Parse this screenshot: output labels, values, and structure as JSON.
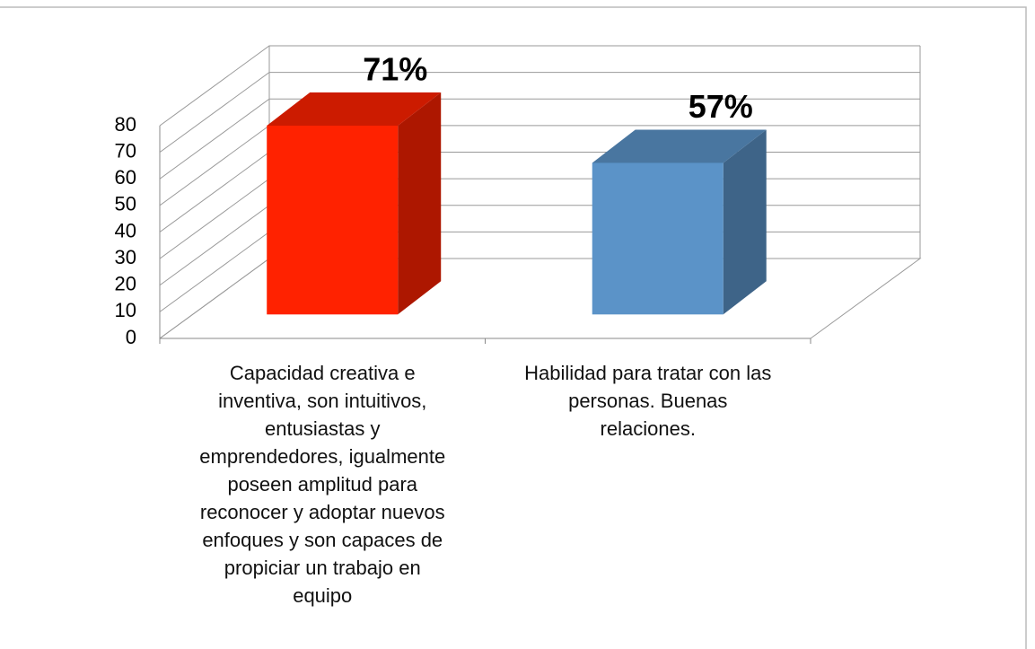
{
  "chart_data": {
    "type": "bar3d",
    "categories": [
      "Capacidad creativa e\ninventiva, son intuitivos,\nentusiastas y\nemprendedores, igualmente\nposeen amplitud para\nreconocer y adoptar nuevos\nenfoques y son capaces de\npropiciar un trabajo en\nequipo",
      "Habilidad para tratar con las\npersonas. Buenas\nrelaciones."
    ],
    "values": [
      71,
      57
    ],
    "value_labels": [
      "71%",
      "57%"
    ],
    "colors": [
      "#ff2200",
      "#5b93c8"
    ],
    "ylim": [
      0,
      80
    ],
    "yticks": [
      0,
      10,
      20,
      30,
      40,
      50,
      60,
      70,
      80
    ],
    "grid": true
  }
}
